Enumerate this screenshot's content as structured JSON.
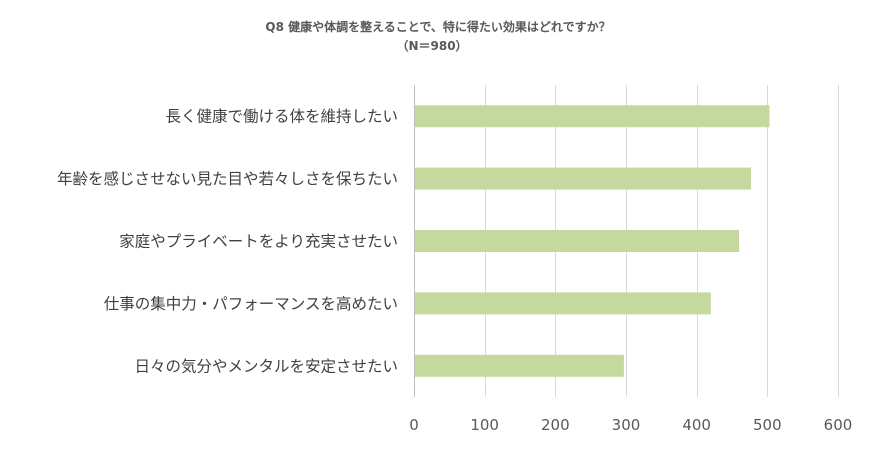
{
  "chart_data": {
    "type": "bar",
    "orientation": "horizontal",
    "title": "Q8 健康や体調を整えることで、特に得たい効果はどれですか？",
    "subtitle": "（N＝980）",
    "categories": [
      "長く健康で働ける体を維持したい",
      "年齢を感じさせない見た目や若々しさを保ちたい",
      "家庭やプライベートをより充実させたい",
      "仕事の集中力・パフォーマンスを高めたい",
      "日々の気分やメンタルを安定させたい"
    ],
    "values": [
      503,
      477,
      460,
      420,
      297
    ],
    "xlim": [
      0,
      600
    ],
    "x_ticks": [
      0,
      100,
      200,
      300,
      400,
      500,
      600
    ],
    "x_tick_labels": [
      "0",
      "100",
      "200",
      "300",
      "400",
      "500",
      "600"
    ],
    "grid": true,
    "legend": "none",
    "bar_color": "#c5d89e"
  }
}
